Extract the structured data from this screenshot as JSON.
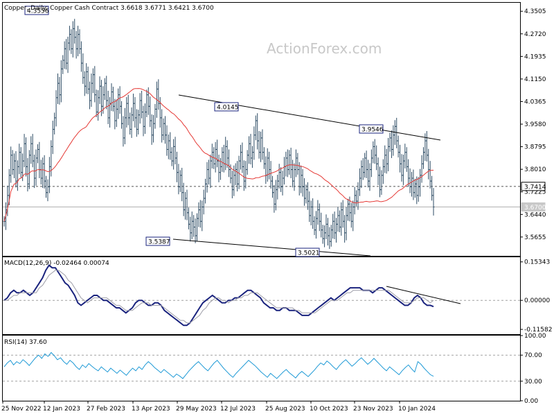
{
  "header": {
    "title": "Copper, Daily:  Copper Cash Contract  3.6618 3.6771 3.6421 3.6700",
    "watermark": "ActionForex.com"
  },
  "colors": {
    "candle": "#2b4a63",
    "ma": "#e53935",
    "trendline": "#000000",
    "macd": "#1a237e",
    "signal": "#9e9ea8",
    "rsi": "#1f9ad6",
    "grid_dash": "#a0a0a0",
    "price_marker": "#b0b0b0"
  },
  "chart_data": [
    {
      "type": "candlestick",
      "title": "Copper, Daily:  Copper Cash Contract  3.6618 3.6771 3.6421 3.6700",
      "ylim": [
        3.5,
        4.38
      ],
      "y_ticks": [
        "4.3505",
        "4.2720",
        "4.1935",
        "4.1150",
        "4.0365",
        "3.9580",
        "3.8795",
        "3.8010",
        "3.7225",
        "3.6440",
        "3.5655"
      ],
      "x_ticks": [
        "25 Nov 2022",
        "12 Jan 2023",
        "27 Feb 2023",
        "13 Apr 2023",
        "29 May 2023",
        "12 Jul 2023",
        "25 Aug 2023",
        "10 Oct 2023",
        "23 Nov 2023",
        "10 Jan 2024"
      ],
      "dashed_level": {
        "value": 3.7414,
        "label": "3.7414"
      },
      "last_price": {
        "value": 3.67,
        "label": "3.6700"
      },
      "annotations": [
        {
          "label": "4.3556",
          "value": 4.3556
        },
        {
          "label": "4.0145",
          "value": 4.0145
        },
        {
          "label": "3.9546",
          "value": 3.9546
        },
        {
          "label": "3.5387",
          "value": 3.5387
        },
        {
          "label": "3.5021",
          "value": 3.5021
        }
      ],
      "closes": [
        3.62,
        3.66,
        3.71,
        3.78,
        3.85,
        3.8,
        3.83,
        3.76,
        3.81,
        3.86,
        3.79,
        3.83,
        3.89,
        3.81,
        3.75,
        3.85,
        3.89,
        3.83,
        3.77,
        3.84,
        3.87,
        3.8,
        3.77,
        3.82,
        3.76,
        3.72,
        3.74,
        3.81,
        3.88,
        3.94,
        3.98,
        4.05,
        4.1,
        4.06,
        4.15,
        4.18,
        4.22,
        4.17,
        4.24,
        4.27,
        4.22,
        4.29,
        4.26,
        4.22,
        4.27,
        4.22,
        4.17,
        4.12,
        4.09,
        4.14,
        4.08,
        4.04,
        4.1,
        4.13,
        4.06,
        4.0,
        4.05,
        4.09,
        4.02,
        4.06,
        4.1,
        4.04,
        3.98,
        4.03,
        4.07,
        4.02,
        3.97,
        4.01,
        4.06,
        4.02,
        3.96,
        3.91,
        3.98,
        4.03,
        3.98,
        3.94,
        3.99,
        4.03,
        3.98,
        3.94,
        3.99,
        4.04,
        4.0,
        3.95,
        4.0,
        4.06,
        4.02,
        3.97,
        3.92,
        3.96,
        4.01,
        4.08,
        4.03,
        3.98,
        3.92,
        3.96,
        3.92,
        3.87,
        3.9,
        3.86,
        3.83,
        3.88,
        3.84,
        3.79,
        3.74,
        3.78,
        3.72,
        3.66,
        3.7,
        3.65,
        3.61,
        3.58,
        3.62,
        3.6,
        3.57,
        3.63,
        3.66,
        3.62,
        3.67,
        3.7,
        3.75,
        3.8,
        3.77,
        3.83,
        3.86,
        3.82,
        3.87,
        3.83,
        3.79,
        3.81,
        3.86,
        3.82,
        3.88,
        3.84,
        3.8,
        3.77,
        3.73,
        3.78,
        3.8,
        3.75,
        3.83,
        3.86,
        3.81,
        3.76,
        3.8,
        3.85,
        3.89,
        3.84,
        3.86,
        3.92,
        3.97,
        3.9,
        3.86,
        3.91,
        3.86,
        3.82,
        3.78,
        3.84,
        3.8,
        3.76,
        3.72,
        3.68,
        3.73,
        3.76,
        3.79,
        3.74,
        3.77,
        3.81,
        3.84,
        3.8,
        3.85,
        3.8,
        3.76,
        3.8,
        3.84,
        3.8,
        3.74,
        3.78,
        3.74,
        3.7,
        3.73,
        3.69,
        3.64,
        3.67,
        3.62,
        3.59,
        3.63,
        3.66,
        3.62,
        3.59,
        3.56,
        3.58,
        3.61,
        3.57,
        3.55,
        3.59,
        3.62,
        3.58,
        3.61,
        3.64,
        3.6,
        3.66,
        3.62,
        3.58,
        3.64,
        3.68,
        3.65,
        3.62,
        3.67,
        3.71,
        3.69,
        3.73,
        3.77,
        3.81,
        3.79,
        3.84,
        3.8,
        3.76,
        3.8,
        3.84,
        3.88,
        3.85,
        3.82,
        3.78,
        3.73,
        3.78,
        3.81,
        3.85,
        3.82,
        3.88,
        3.91,
        3.87,
        3.92,
        3.95,
        3.9,
        3.86,
        3.82,
        3.78,
        3.83,
        3.86,
        3.81,
        3.77,
        3.74,
        3.77,
        3.72,
        3.75,
        3.71,
        3.74,
        3.78,
        3.82,
        3.86,
        3.9,
        3.85,
        3.8,
        3.76,
        3.71,
        3.67
      ],
      "ma_period": 50
    },
    {
      "type": "line",
      "title": "MACD(12,26,9) -0.02464 0.00074",
      "ylim": [
        -0.135,
        0.172
      ],
      "y_ticks": [
        "0.15343",
        "0.00000",
        "-0.11582"
      ],
      "series": [
        {
          "name": "MACD(12,26,9)",
          "values": [
            0.0,
            0.01,
            0.03,
            0.04,
            0.03,
            0.03,
            0.04,
            0.03,
            0.02,
            0.03,
            0.05,
            0.07,
            0.09,
            0.12,
            0.14,
            0.13,
            0.13,
            0.11,
            0.09,
            0.07,
            0.06,
            0.04,
            0.02,
            -0.01,
            -0.02,
            -0.01,
            0.0,
            0.01,
            0.02,
            0.02,
            0.01,
            0.0,
            0.0,
            -0.01,
            -0.02,
            -0.03,
            -0.03,
            -0.04,
            -0.05,
            -0.04,
            -0.03,
            -0.01,
            0.0,
            0.0,
            -0.01,
            -0.02,
            -0.02,
            -0.01,
            -0.01,
            -0.02,
            -0.04,
            -0.05,
            -0.06,
            -0.07,
            -0.08,
            -0.09,
            -0.1,
            -0.1,
            -0.09,
            -0.07,
            -0.05,
            -0.03,
            -0.01,
            0.0,
            0.01,
            0.02,
            0.01,
            0.0,
            -0.01,
            -0.01,
            0.0,
            0.0,
            0.01,
            0.01,
            0.02,
            0.03,
            0.04,
            0.04,
            0.03,
            0.02,
            0.01,
            -0.01,
            -0.02,
            -0.03,
            -0.03,
            -0.04,
            -0.04,
            -0.03,
            -0.03,
            -0.04,
            -0.04,
            -0.04,
            -0.05,
            -0.06,
            -0.06,
            -0.06,
            -0.05,
            -0.04,
            -0.03,
            -0.02,
            -0.01,
            0.0,
            0.01,
            0.0,
            0.01,
            0.02,
            0.03,
            0.04,
            0.05,
            0.05,
            0.05,
            0.05,
            0.04,
            0.04,
            0.04,
            0.03,
            0.04,
            0.05,
            0.05,
            0.04,
            0.03,
            0.02,
            0.01,
            0.0,
            -0.01,
            -0.02,
            -0.02,
            -0.01,
            0.01,
            0.02,
            0.01,
            -0.01,
            -0.02,
            -0.02,
            -0.025
          ]
        },
        {
          "name": "Signal",
          "values": [
            0.0,
            0.0,
            0.01,
            0.02,
            0.02,
            0.03,
            0.03,
            0.03,
            0.03,
            0.03,
            0.03,
            0.05,
            0.06,
            0.08,
            0.1,
            0.11,
            0.12,
            0.12,
            0.11,
            0.1,
            0.08,
            0.07,
            0.05,
            0.03,
            0.01,
            0.0,
            -0.01,
            0.0,
            0.01,
            0.01,
            0.01,
            0.01,
            0.01,
            0.0,
            -0.01,
            -0.02,
            -0.02,
            -0.03,
            -0.04,
            -0.04,
            -0.04,
            -0.03,
            -0.02,
            -0.01,
            -0.01,
            -0.01,
            -0.02,
            -0.02,
            -0.02,
            -0.02,
            -0.03,
            -0.04,
            -0.05,
            -0.06,
            -0.07,
            -0.08,
            -0.08,
            -0.09,
            -0.09,
            -0.08,
            -0.07,
            -0.06,
            -0.04,
            -0.03,
            -0.01,
            0.0,
            0.01,
            0.01,
            0.0,
            0.0,
            -0.01,
            0.0,
            0.0,
            0.01,
            0.01,
            0.02,
            0.02,
            0.03,
            0.03,
            0.03,
            0.02,
            0.01,
            0.0,
            -0.01,
            -0.02,
            -0.03,
            -0.03,
            -0.03,
            -0.03,
            -0.03,
            -0.03,
            -0.04,
            -0.04,
            -0.05,
            -0.05,
            -0.05,
            -0.05,
            -0.05,
            -0.04,
            -0.03,
            -0.02,
            -0.01,
            0.0,
            0.0,
            0.0,
            0.01,
            0.02,
            0.03,
            0.03,
            0.04,
            0.04,
            0.04,
            0.04,
            0.04,
            0.04,
            0.04,
            0.04,
            0.04,
            0.04,
            0.04,
            0.04,
            0.03,
            0.02,
            0.01,
            0.0,
            -0.01,
            -0.01,
            -0.01,
            0.0,
            0.01,
            0.01,
            0.01,
            0.0,
            -0.01,
            0.0
          ]
        }
      ]
    },
    {
      "type": "line",
      "title": "RSI(14) 37.60",
      "ylim": [
        0,
        100
      ],
      "y_ticks": [
        "100.00",
        "70.00",
        "30.00",
        "0.00"
      ],
      "levels": [
        70,
        30
      ],
      "series": [
        {
          "name": "RSI(14)",
          "values": [
            52,
            58,
            62,
            55,
            60,
            57,
            63,
            59,
            54,
            60,
            66,
            70,
            65,
            72,
            68,
            74,
            69,
            63,
            66,
            60,
            56,
            62,
            58,
            52,
            48,
            55,
            51,
            57,
            53,
            49,
            46,
            52,
            48,
            44,
            50,
            46,
            42,
            47,
            43,
            39,
            45,
            50,
            46,
            52,
            48,
            55,
            60,
            56,
            51,
            47,
            43,
            48,
            44,
            40,
            36,
            41,
            38,
            34,
            40,
            46,
            51,
            56,
            60,
            55,
            50,
            46,
            52,
            58,
            62,
            56,
            50,
            45,
            40,
            36,
            42,
            47,
            52,
            57,
            62,
            58,
            54,
            49,
            44,
            40,
            36,
            42,
            38,
            34,
            39,
            44,
            48,
            43,
            39,
            35,
            41,
            45,
            41,
            37,
            42,
            47,
            53,
            58,
            55,
            61,
            57,
            52,
            48,
            54,
            59,
            63,
            58,
            53,
            57,
            62,
            66,
            61,
            56,
            60,
            65,
            60,
            55,
            50,
            46,
            52,
            48,
            44,
            40,
            46,
            51,
            55,
            49,
            44,
            60,
            56,
            50,
            45,
            40,
            37.6
          ]
        }
      ]
    }
  ]
}
